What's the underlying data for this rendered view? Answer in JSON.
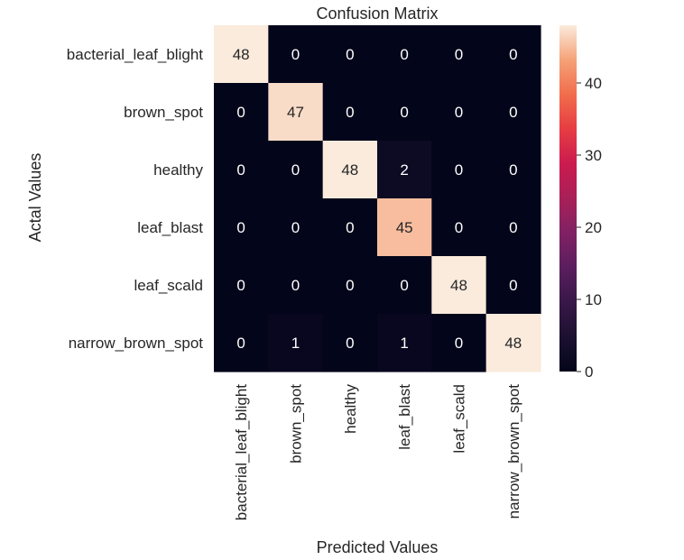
{
  "chart_data": {
    "type": "heatmap",
    "title": "Confusion Matrix",
    "xlabel": "Predicted Values",
    "ylabel": "Actal Values",
    "categories_x": [
      "bacterial_leaf_blight",
      "brown_spot",
      "healthy",
      "leaf_blast",
      "leaf_scald",
      "narrow_brown_spot"
    ],
    "categories_y": [
      "bacterial_leaf_blight",
      "brown_spot",
      "healthy",
      "leaf_blast",
      "leaf_scald",
      "narrow_brown_spot"
    ],
    "values": [
      [
        48,
        0,
        0,
        0,
        0,
        0
      ],
      [
        0,
        47,
        0,
        0,
        0,
        0
      ],
      [
        0,
        0,
        48,
        2,
        0,
        0
      ],
      [
        0,
        0,
        0,
        45,
        0,
        0
      ],
      [
        0,
        0,
        0,
        0,
        48,
        0
      ],
      [
        0,
        1,
        0,
        1,
        0,
        48
      ]
    ],
    "annotate": true,
    "colormap": "rocket",
    "colorbar": {
      "range": [
        0,
        48
      ],
      "ticks": [
        0,
        10,
        20,
        30,
        40
      ],
      "tick_labels": [
        "0",
        "10",
        "20",
        "30",
        "40"
      ],
      "position": "right"
    },
    "grid": false
  }
}
